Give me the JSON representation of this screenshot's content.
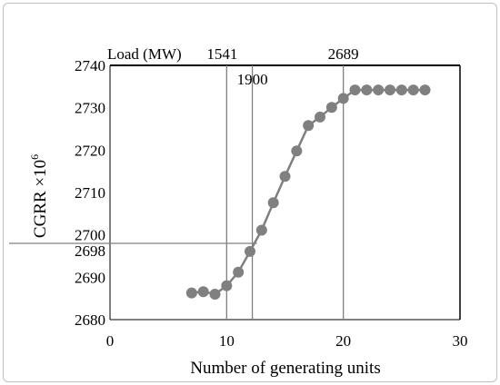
{
  "chart_data": {
    "type": "line",
    "xlabel": "Number of generating units",
    "ylabel": "CGRR ×10",
    "ylabel_superscript": "6",
    "xlim": [
      0,
      30
    ],
    "ylim": [
      2680,
      2740
    ],
    "x_ticks": [
      "0",
      "10",
      "20",
      "30"
    ],
    "y_ticks": [
      "2680",
      "2690",
      "2700",
      "2710",
      "2720",
      "2730",
      "2740"
    ],
    "series": [
      {
        "color": "#808080",
        "marker": "circle",
        "x": [
          7,
          8,
          9,
          10,
          11,
          12,
          13,
          14,
          15,
          16,
          17,
          18,
          19,
          20,
          21,
          22,
          23,
          24,
          25,
          26,
          27
        ],
        "y": [
          2686.3,
          2686.6,
          2686.0,
          2688.0,
          2691.2,
          2696.1,
          2701.1,
          2707.6,
          2713.8,
          2719.8,
          2725.8,
          2727.8,
          2730.1,
          2732.2,
          2734.2,
          2734.2,
          2734.2,
          2734.2,
          2734.2,
          2734.2,
          2734.2
        ]
      }
    ],
    "grid": false,
    "legend": "none",
    "secondary_axis": {
      "label": "Load (MW)",
      "markers": [
        {
          "x": 10,
          "label": "1541"
        },
        {
          "x": 12.2,
          "label": "1900"
        },
        {
          "x": 20,
          "label": "2689"
        }
      ]
    },
    "annotation": {
      "y": 2698,
      "label": "2698",
      "x_from": 0,
      "x_to": 12.6
    }
  }
}
